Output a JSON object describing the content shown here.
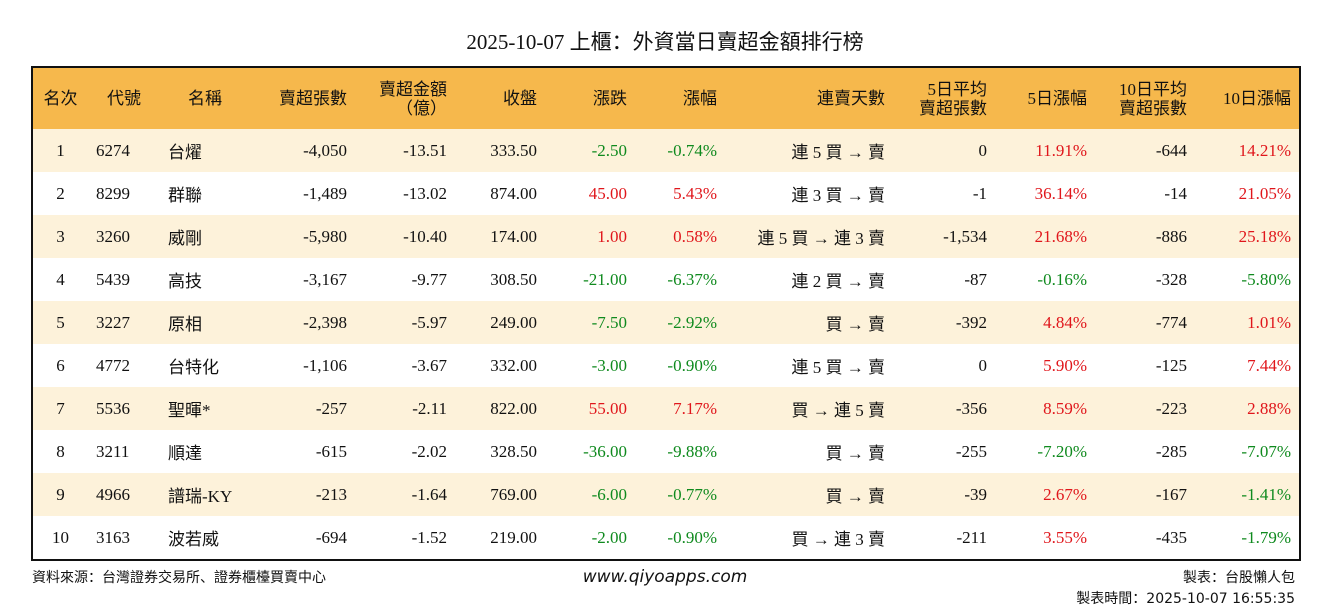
{
  "title": "2025-10-07 上櫃：外資當日賣超金額排行榜",
  "table": {
    "header": [
      "名次",
      "代號",
      "名稱",
      "賣超張數",
      "賣超金額\n（億）",
      "收盤",
      "漲跌",
      "漲幅",
      "連賣天數",
      "5日平均\n賣超張數",
      "5日漲幅",
      "10日平均\n賣超張數",
      "10日漲幅"
    ],
    "rows": [
      [
        "1",
        "6274",
        "台燿",
        "-4,050",
        "-13.51",
        "333.50",
        "-2.50",
        "-0.74%",
        "連 5 買 → 賣",
        "0",
        "11.91%",
        "-644",
        "14.21%"
      ],
      [
        "2",
        "8299",
        "群聯",
        "-1,489",
        "-13.02",
        "874.00",
        "45.00",
        "5.43%",
        "連 3 買 → 賣",
        "-1",
        "36.14%",
        "-14",
        "21.05%"
      ],
      [
        "3",
        "3260",
        "威剛",
        "-5,980",
        "-10.40",
        "174.00",
        "1.00",
        "0.58%",
        "連 5 買 → 連 3 賣",
        "-1,534",
        "21.68%",
        "-886",
        "25.18%"
      ],
      [
        "4",
        "5439",
        "高技",
        "-3,167",
        "-9.77",
        "308.50",
        "-21.00",
        "-6.37%",
        "連 2 買 → 賣",
        "-87",
        "-0.16%",
        "-328",
        "-5.80%"
      ],
      [
        "5",
        "3227",
        "原相",
        "-2,398",
        "-5.97",
        "249.00",
        "-7.50",
        "-2.92%",
        "買 → 賣",
        "-392",
        "4.84%",
        "-774",
        "1.01%"
      ],
      [
        "6",
        "4772",
        "台特化",
        "-1,106",
        "-3.67",
        "332.00",
        "-3.00",
        "-0.90%",
        "連 5 買 → 賣",
        "0",
        "5.90%",
        "-125",
        "7.44%"
      ],
      [
        "7",
        "5536",
        "聖暉*",
        "-257",
        "-2.11",
        "822.00",
        "55.00",
        "7.17%",
        "買 → 連 5 賣",
        "-356",
        "8.59%",
        "-223",
        "2.88%"
      ],
      [
        "8",
        "3211",
        "順達",
        "-615",
        "-2.02",
        "328.50",
        "-36.00",
        "-9.88%",
        "買 → 賣",
        "-255",
        "-7.20%",
        "-285",
        "-7.07%"
      ],
      [
        "9",
        "4966",
        "譜瑞-KY",
        "-213",
        "-1.64",
        "769.00",
        "-6.00",
        "-0.77%",
        "買 → 賣",
        "-39",
        "2.67%",
        "-167",
        "-1.41%"
      ],
      [
        "10",
        "3163",
        "波若威",
        "-694",
        "-1.52",
        "219.00",
        "-2.00",
        "-0.90%",
        "買 → 連 3 賣",
        "-211",
        "3.55%",
        "-435",
        "-1.79%"
      ]
    ]
  },
  "footer": {
    "source": "資料來源：台灣證券交易所、證券櫃檯買賣中心",
    "website": "www.qiyoapps.com",
    "maker": "製表：台股懶人包",
    "time": "製表時間：2025-10-07 16:55:35"
  }
}
